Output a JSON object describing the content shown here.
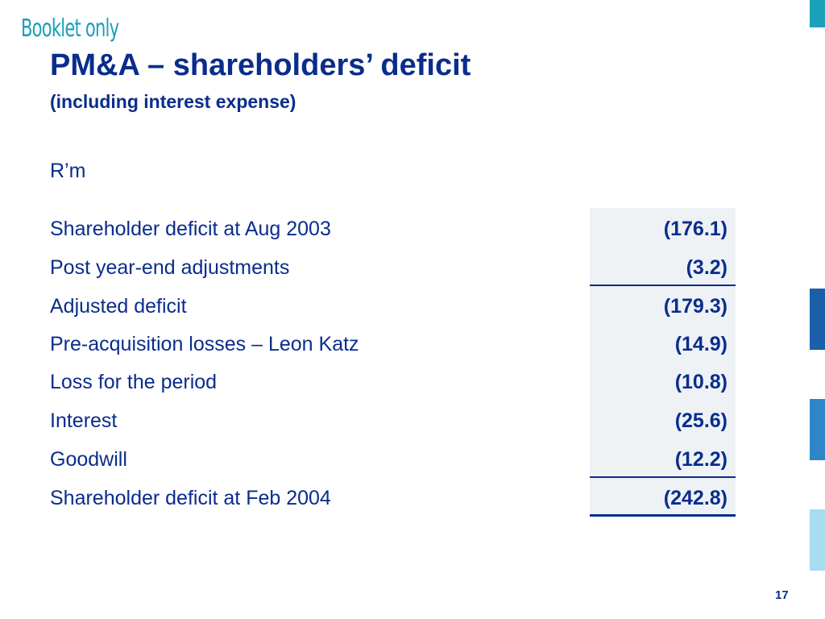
{
  "header": {
    "stamp": "Booklet only",
    "title": "PM&A – shareholders’ deficit",
    "subtitle": "(including interest expense)",
    "unit": "R’m"
  },
  "table": {
    "rows": [
      {
        "label": "Shareholder deficit at Aug 2003",
        "value": "(176.1)"
      },
      {
        "label": "Post year-end adjustments",
        "value": "(3.2)"
      },
      {
        "label": "Adjusted deficit",
        "value": "(179.3)"
      },
      {
        "label": "Pre-acquisition losses – Leon Katz",
        "value": "(14.9)"
      },
      {
        "label": "Loss for the period",
        "value": "(10.8)"
      },
      {
        "label": "Interest",
        "value": "(25.6)"
      },
      {
        "label": "Goodwill",
        "value": "(12.2)"
      },
      {
        "label": "Shareholder deficit at Feb 2004",
        "value": "(242.8)"
      }
    ]
  },
  "footer": {
    "page_number": "17"
  },
  "colors": {
    "title": "#0a2d8c",
    "stamp": "#1aa0b8",
    "value_background": "#eef2f5",
    "side_bars": [
      "#1aa0b8",
      "#1a5fa8",
      "#2f86c6",
      "#a8dcf0"
    ]
  }
}
